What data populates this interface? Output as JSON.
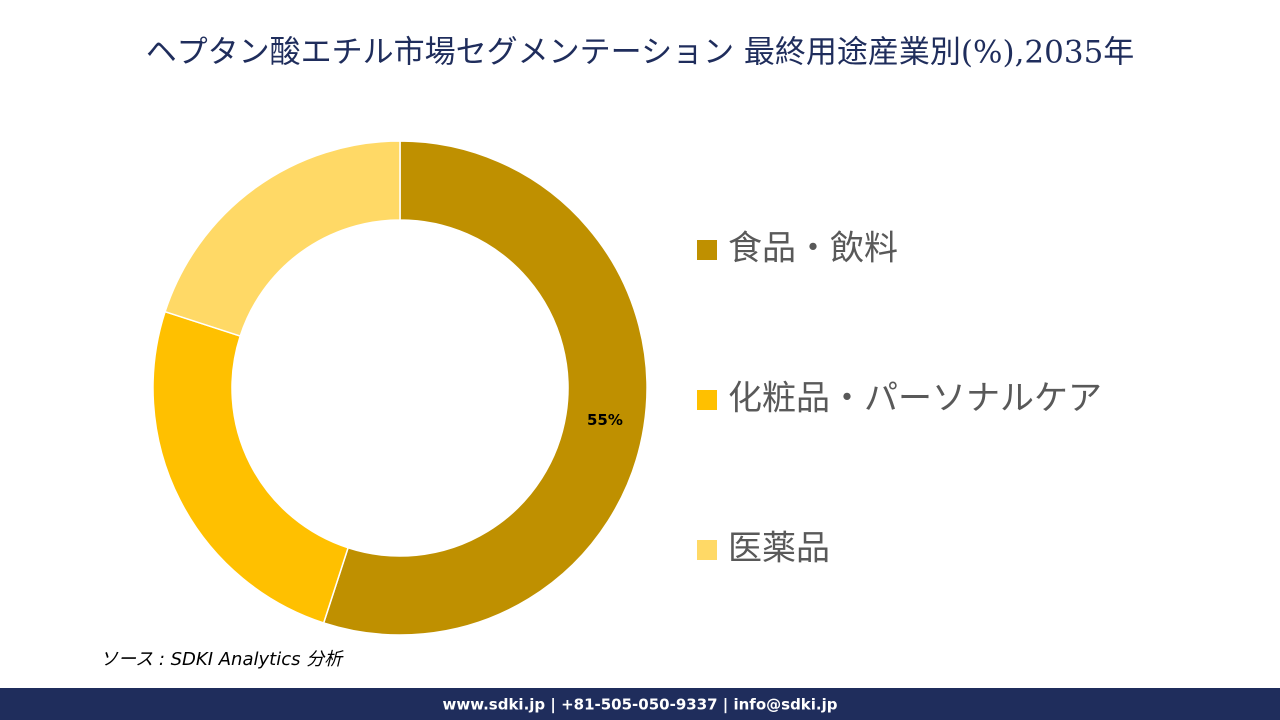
{
  "chart_data": {
    "type": "donut",
    "title": "ヘプタン酸エチル市場セグメンテーション 最終用途産業別(%),2035年",
    "categories": [
      "食品・飲料",
      "化粧品・パーソナルケア",
      "医薬品"
    ],
    "values": [
      55,
      25,
      20
    ],
    "value_labels": [
      "55%",
      null,
      null
    ],
    "colors": [
      "#bf9000",
      "#ffc000",
      "#ffd966"
    ]
  },
  "source": "ソース : SDKI Analytics 分析",
  "footer": "www.sdki.jp | +81-505-050-9337 | info@sdki.jp"
}
